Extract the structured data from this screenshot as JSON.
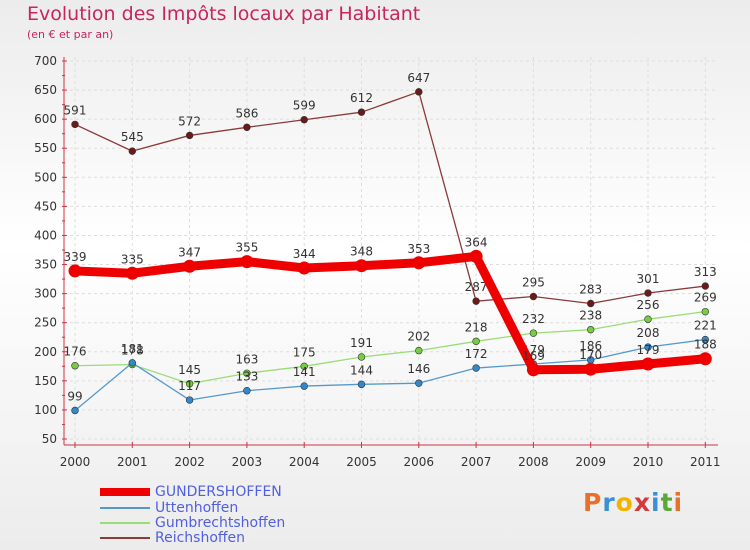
{
  "header": {
    "title": "Evolution des Impôts locaux par Habitant",
    "subtitle": "(en € et par an)"
  },
  "logo": {
    "text": "Proxiti",
    "colors": [
      "#e8702a",
      "#3a8fd6",
      "#f0b400",
      "#d23a3a",
      "#3a8fd6",
      "#5aa83a",
      "#e8702a"
    ]
  },
  "chart_data": {
    "type": "line",
    "title": "Evolution des Impôts locaux par Habitant",
    "subtitle": "(en € et par an)",
    "xlabel": "",
    "ylabel": "",
    "categories": [
      "2000",
      "2001",
      "2002",
      "2003",
      "2004",
      "2005",
      "2006",
      "2007",
      "2008",
      "2009",
      "2010",
      "2011"
    ],
    "y_ticks": [
      50,
      100,
      150,
      200,
      250,
      300,
      350,
      400,
      450,
      500,
      550,
      600,
      650,
      700
    ],
    "ylim": [
      50,
      700
    ],
    "grid": true,
    "legend_position": "bottom-left",
    "series": [
      {
        "name": "Reichshoffen",
        "color": "#8b3a3a",
        "marker": "#6b1a1a",
        "values": [
          591,
          545,
          572,
          586,
          599,
          612,
          647,
          287,
          295,
          283,
          301,
          313
        ],
        "labels": [
          "591",
          "545",
          "572",
          "586",
          "599",
          "612",
          "647",
          "287",
          "295",
          "283",
          "301",
          "313"
        ]
      },
      {
        "name": "Gumbrechtshoffen",
        "color": "#99dd77",
        "marker": "#77cc44",
        "values": [
          176,
          178,
          145,
          163,
          175,
          191,
          202,
          218,
          232,
          238,
          256,
          269
        ],
        "labels": [
          "176",
          "178",
          "145",
          "163",
          "175",
          "191",
          "202",
          "218",
          "232",
          "238",
          "256",
          "269"
        ]
      },
      {
        "name": "Uttenhoffen",
        "color": "#5599cc",
        "marker": "#3388cc",
        "values": [
          99,
          181,
          117,
          133,
          141,
          144,
          146,
          172,
          179,
          186,
          208,
          221
        ],
        "labels": [
          "99",
          "181",
          "117",
          "133",
          "141",
          "144",
          "146",
          "172",
          "179",
          "186",
          "208",
          "221"
        ]
      },
      {
        "name": "GUNDERSHOFFEN",
        "color": "#ee0000",
        "marker": "#ee0000",
        "values": [
          339,
          335,
          347,
          355,
          344,
          348,
          353,
          364,
          169,
          170,
          179,
          188
        ],
        "labels": [
          "339",
          "335",
          "347",
          "355",
          "344",
          "348",
          "353",
          "364",
          "169",
          "170",
          "179",
          "188"
        ]
      }
    ],
    "legend_order": [
      "GUNDERSHOFFEN",
      "Uttenhoffen",
      "Gumbrechtshoffen",
      "Reichshoffen"
    ]
  }
}
